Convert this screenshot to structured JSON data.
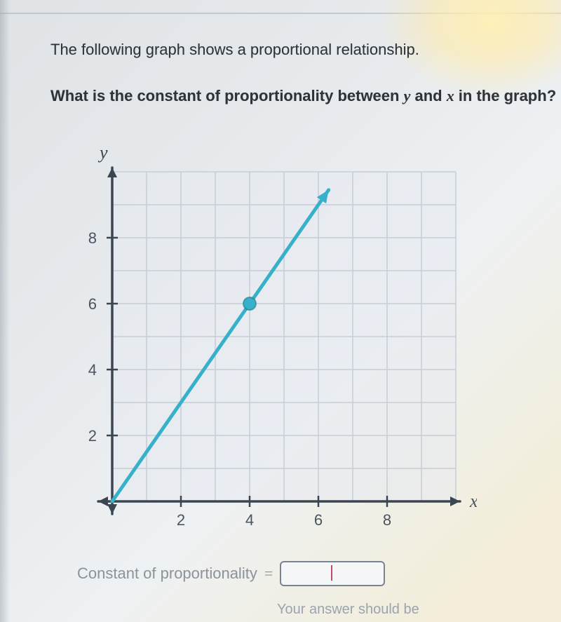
{
  "prompt": {
    "line1": "The following graph shows a proportional relationship.",
    "line2_prefix": "What is the constant of proportionality between ",
    "var_y": "y",
    "line2_mid": " and ",
    "var_x": "x",
    "line2_suffix": " in the graph?"
  },
  "chart": {
    "type": "line",
    "background_color": "rgba(230,234,240,0.55)",
    "grid_color": "#c6cdd6",
    "grid_width": 1.5,
    "axis_color": "#3b4652",
    "axis_width": 3.5,
    "line_color": "#37b1c9",
    "line_width": 5,
    "point_fill": "#37b1c9",
    "point_radius": 9,
    "xlim": [
      0,
      10
    ],
    "ylim": [
      0,
      10
    ],
    "x_ticks": [
      2,
      4,
      6,
      8
    ],
    "y_ticks": [
      2,
      4,
      6,
      8
    ],
    "x_label": "x",
    "y_label": "y",
    "line_endpoints": [
      [
        0,
        0
      ],
      [
        6.3,
        9.45
      ]
    ],
    "marked_point": [
      4,
      6
    ],
    "tick_size": 8,
    "tick_fontsize": 22,
    "label_fontsize": 26,
    "arrowheads": true
  },
  "answer": {
    "label": "Constant of proportionality",
    "equals": "=",
    "value": "",
    "placeholder": ""
  },
  "footer_hint": "Your answer should be"
}
